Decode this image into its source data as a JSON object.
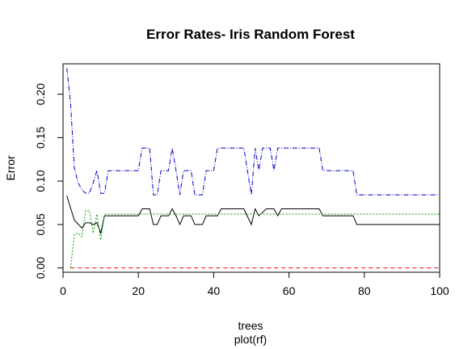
{
  "chart_data": {
    "type": "line",
    "title": "Error Rates- Iris Random Forest",
    "xlabel": "trees",
    "ylabel": "Error",
    "caption": "plot(rf)",
    "xlim": [
      0,
      100
    ],
    "ylim": [
      -0.005,
      0.235
    ],
    "x_ticks": [
      0,
      20,
      40,
      60,
      80,
      100
    ],
    "y_ticks": [
      0.0,
      0.05,
      0.1,
      0.15,
      0.2
    ],
    "x_tick_labels": [
      "0",
      "20",
      "40",
      "60",
      "80",
      "100"
    ],
    "y_tick_labels": [
      "0.00",
      "0.05",
      "0.10",
      "0.15",
      "0.20"
    ],
    "grid": false,
    "series": [
      {
        "color": "#000000",
        "dash": "",
        "points": [
          [
            1,
            0.083
          ],
          [
            3,
            0.055
          ],
          [
            5,
            0.046
          ],
          [
            6,
            0.052
          ],
          [
            7,
            0.052
          ],
          [
            8,
            0.05
          ],
          [
            9,
            0.052
          ],
          [
            10,
            0.04
          ],
          [
            11,
            0.06
          ],
          [
            20,
            0.06
          ],
          [
            21,
            0.068
          ],
          [
            23,
            0.068
          ],
          [
            24,
            0.05
          ],
          [
            25,
            0.05
          ],
          [
            26,
            0.06
          ],
          [
            28,
            0.06
          ],
          [
            29,
            0.068
          ],
          [
            30,
            0.06
          ],
          [
            31,
            0.05
          ],
          [
            32,
            0.06
          ],
          [
            34,
            0.06
          ],
          [
            35,
            0.05
          ],
          [
            37,
            0.05
          ],
          [
            38,
            0.06
          ],
          [
            41,
            0.06
          ],
          [
            42,
            0.068
          ],
          [
            48,
            0.068
          ],
          [
            50,
            0.05
          ],
          [
            51,
            0.068
          ],
          [
            52,
            0.06
          ],
          [
            54,
            0.068
          ],
          [
            56,
            0.068
          ],
          [
            57,
            0.06
          ],
          [
            58,
            0.068
          ],
          [
            68,
            0.068
          ],
          [
            69,
            0.06
          ],
          [
            77,
            0.06
          ],
          [
            78,
            0.05
          ],
          [
            100,
            0.05
          ]
        ]
      },
      {
        "color": "#ff0000",
        "dash": "5,4",
        "points": [
          [
            2,
            0.0
          ],
          [
            100,
            0.0
          ]
        ]
      },
      {
        "color": "#00a000",
        "dash": "2,2",
        "points": [
          [
            2,
            0.0
          ],
          [
            3,
            0.039
          ],
          [
            4,
            0.04
          ],
          [
            5,
            0.036
          ],
          [
            6,
            0.066
          ],
          [
            7,
            0.066
          ],
          [
            8,
            0.04
          ],
          [
            9,
            0.062
          ],
          [
            10,
            0.032
          ],
          [
            11,
            0.062
          ],
          [
            100,
            0.062
          ]
        ]
      },
      {
        "color": "#0000cc",
        "dash": "6,2,1,2",
        "points": [
          [
            1,
            0.23
          ],
          [
            2,
            0.19
          ],
          [
            3,
            0.115
          ],
          [
            4,
            0.098
          ],
          [
            5,
            0.09
          ],
          [
            6,
            0.086
          ],
          [
            7,
            0.086
          ],
          [
            8,
            0.098
          ],
          [
            9,
            0.112
          ],
          [
            10,
            0.086
          ],
          [
            11,
            0.086
          ],
          [
            12,
            0.112
          ],
          [
            20,
            0.112
          ],
          [
            21,
            0.138
          ],
          [
            23,
            0.138
          ],
          [
            24,
            0.084
          ],
          [
            25,
            0.084
          ],
          [
            26,
            0.112
          ],
          [
            28,
            0.112
          ],
          [
            29,
            0.138
          ],
          [
            30,
            0.112
          ],
          [
            31,
            0.084
          ],
          [
            32,
            0.112
          ],
          [
            34,
            0.112
          ],
          [
            35,
            0.084
          ],
          [
            37,
            0.084
          ],
          [
            38,
            0.112
          ],
          [
            40,
            0.112
          ],
          [
            41,
            0.138
          ],
          [
            48,
            0.138
          ],
          [
            50,
            0.084
          ],
          [
            51,
            0.138
          ],
          [
            52,
            0.112
          ],
          [
            53,
            0.138
          ],
          [
            55,
            0.138
          ],
          [
            56,
            0.112
          ],
          [
            57,
            0.138
          ],
          [
            68,
            0.138
          ],
          [
            69,
            0.112
          ],
          [
            77,
            0.112
          ],
          [
            78,
            0.084
          ],
          [
            100,
            0.084
          ]
        ]
      }
    ]
  }
}
